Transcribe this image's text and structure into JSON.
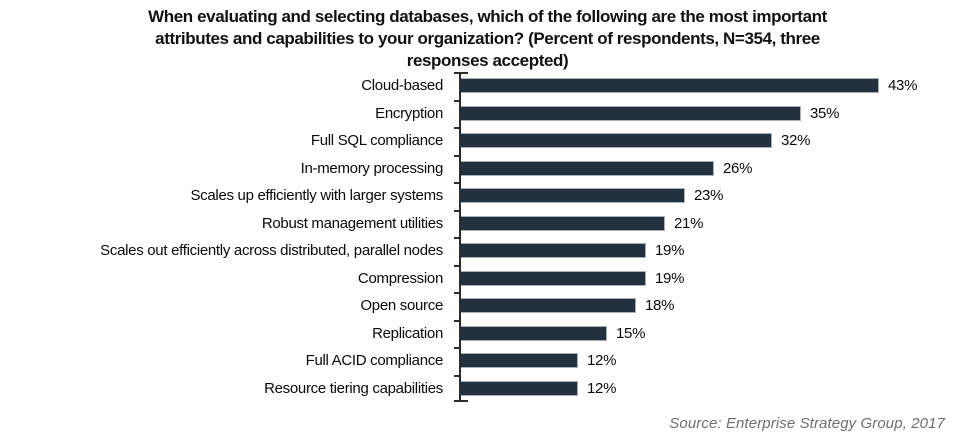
{
  "chart_data": {
    "type": "bar",
    "orientation": "horizontal",
    "title": "When evaluating and selecting databases, which of the following are the most important attributes and capabilities to your organization? (Percent of respondents, N=354, three responses accepted)",
    "title_lines": [
      "When evaluating and selecting databases, which of the following are the most important",
      "attributes and capabilities to your organization? (Percent of respondents, N=354, three",
      "responses accepted)"
    ],
    "categories": [
      "Cloud-based",
      "Encryption",
      "Full SQL compliance",
      "In-memory processing",
      "Scales up efficiently with larger systems",
      "Robust management utilities",
      "Scales out efficiently across distributed, parallel nodes",
      "Compression",
      "Open source",
      "Replication",
      "Full ACID compliance",
      "Resource tiering capabilities"
    ],
    "values": [
      43,
      35,
      32,
      26,
      23,
      21,
      19,
      19,
      18,
      15,
      12,
      12
    ],
    "value_suffix": "%",
    "xlabel": "",
    "ylabel": "",
    "xlim": [
      0,
      45
    ],
    "grid": "off",
    "legend": "none",
    "data_labels": "at-bar-end",
    "bar_color": "#22303f",
    "bar_border_color": "#a9b0b8",
    "axis_color": "#2b2b2b",
    "source": "Source: Enterprise Strategy Group, 2017"
  }
}
